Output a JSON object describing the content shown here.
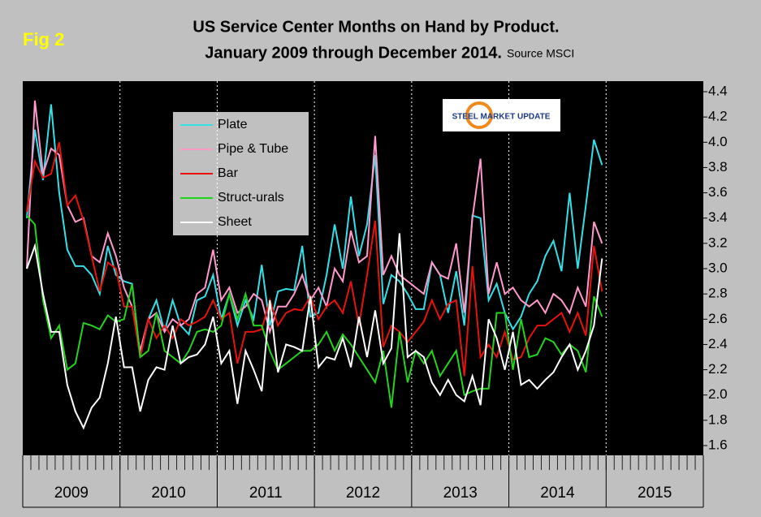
{
  "chart_data": {
    "type": "line",
    "title": "US Service Center Months on Hand by Product.",
    "subtitle": "January 2009 through December 2014.",
    "source": "Source MSCI",
    "figure_label": "Fig 2",
    "logo": "STEEL MARKET UPDATE",
    "categories": [
      null,
      null,
      null,
      null,
      null,
      null,
      null,
      null,
      null,
      null,
      null,
      null,
      null,
      null,
      null,
      null,
      null,
      null,
      null,
      null,
      null,
      null,
      null,
      null,
      null,
      null,
      null,
      null,
      null,
      null,
      null,
      null,
      null,
      null,
      null,
      null,
      null,
      null,
      null,
      null,
      null,
      null,
      null,
      null,
      null,
      null,
      null,
      null,
      null,
      null,
      null,
      null,
      null,
      null,
      null,
      null,
      null,
      null,
      null,
      null,
      null,
      null,
      null,
      null,
      null,
      null,
      null,
      null,
      null,
      null,
      null,
      null,
      null,
      null,
      null,
      null,
      null,
      null,
      null,
      null,
      null,
      null,
      null,
      null
    ],
    "year_labels": [
      "2009",
      "2010",
      "2011",
      "2012",
      "2013",
      "2014",
      "2015"
    ],
    "legend": "upper-left",
    "series": [
      {
        "name": "Plate",
        "color": "#33e0e8",
        "values": [
          3.4,
          4.1,
          3.7,
          4.3,
          3.6,
          3.15,
          3.02,
          3.02,
          2.95,
          2.8,
          3.18,
          2.95,
          2.9,
          2.88,
          2.3,
          2.6,
          2.75,
          2.5,
          2.75,
          2.55,
          2.48,
          2.75,
          2.78,
          2.95,
          2.6,
          2.8,
          2.55,
          2.75,
          2.6,
          3.03,
          2.55,
          2.82,
          2.84,
          2.83,
          3.18,
          2.62,
          2.65,
          2.95,
          3.35,
          3.0,
          3.57,
          3.1,
          3.35,
          3.9,
          2.72,
          2.95,
          2.9,
          2.8,
          2.68,
          2.68,
          3.05,
          2.95,
          2.65,
          2.98,
          2.55,
          3.42,
          3.4,
          2.75,
          2.88,
          2.65,
          2.52,
          2.62,
          2.8,
          2.9,
          3.1,
          3.22,
          2.98,
          3.6,
          3.0,
          3.5,
          4.02,
          3.82,
          null,
          null,
          null,
          null,
          null,
          null,
          null,
          null,
          null,
          null,
          null,
          null
        ]
      },
      {
        "name": "Pipe & Tube",
        "color": "#ff99cc",
        "values": [
          3.0,
          4.33,
          3.75,
          3.95,
          3.9,
          3.5,
          3.37,
          3.4,
          3.1,
          3.05,
          3.28,
          3.1,
          2.85,
          2.7,
          2.35,
          2.6,
          2.65,
          2.5,
          2.6,
          2.55,
          2.6,
          2.8,
          2.85,
          3.15,
          2.75,
          2.85,
          2.65,
          2.7,
          2.8,
          2.75,
          2.5,
          2.7,
          2.7,
          2.8,
          2.95,
          2.75,
          2.85,
          2.7,
          3.0,
          2.9,
          3.3,
          3.05,
          3.1,
          4.05,
          2.95,
          3.1,
          2.95,
          2.9,
          2.85,
          2.8,
          3.05,
          2.95,
          2.92,
          3.2,
          2.65,
          3.4,
          3.87,
          2.8,
          3.05,
          2.8,
          2.85,
          2.75,
          2.7,
          2.75,
          2.65,
          2.8,
          2.75,
          2.65,
          2.85,
          2.7,
          3.37,
          3.2,
          null,
          null,
          null,
          null,
          null,
          null,
          null,
          null,
          null,
          null,
          null,
          null
        ]
      },
      {
        "name": "Bar",
        "color": "#e8120c",
        "values": [
          3.45,
          3.85,
          3.72,
          3.75,
          4.0,
          3.5,
          3.58,
          3.38,
          3.1,
          2.82,
          3.05,
          3.0,
          2.7,
          2.7,
          2.3,
          2.6,
          2.45,
          2.55,
          2.45,
          2.6,
          2.55,
          2.58,
          2.62,
          2.75,
          2.6,
          2.65,
          2.25,
          2.5,
          2.5,
          2.52,
          2.75,
          2.55,
          2.65,
          2.68,
          2.67,
          2.78,
          2.6,
          2.7,
          2.75,
          2.65,
          2.9,
          2.55,
          2.95,
          3.38,
          2.38,
          2.55,
          2.5,
          2.42,
          2.5,
          2.58,
          2.75,
          2.6,
          2.72,
          2.75,
          2.15,
          3.02,
          2.3,
          2.4,
          2.3,
          2.5,
          2.28,
          2.3,
          2.45,
          2.55,
          2.55,
          2.6,
          2.65,
          2.5,
          2.65,
          2.47,
          3.18,
          2.82,
          null,
          null,
          null,
          null,
          null,
          null,
          null,
          null,
          null,
          null,
          null,
          null
        ]
      },
      {
        "name": "Struct-urals",
        "color": "#22d41c",
        "values": [
          3.42,
          3.35,
          2.75,
          2.45,
          2.55,
          2.2,
          2.25,
          2.57,
          2.55,
          2.52,
          2.63,
          2.58,
          2.6,
          2.88,
          2.3,
          2.35,
          2.65,
          2.35,
          2.3,
          2.25,
          2.35,
          2.5,
          2.52,
          2.5,
          2.55,
          2.8,
          2.6,
          2.8,
          2.55,
          2.55,
          2.35,
          2.2,
          2.25,
          2.3,
          2.35,
          2.35,
          2.4,
          2.5,
          2.35,
          2.48,
          2.4,
          2.3,
          2.2,
          2.1,
          2.35,
          1.9,
          2.5,
          2.1,
          2.35,
          2.25,
          2.35,
          2.15,
          2.25,
          2.35,
          2.0,
          2.03,
          2.05,
          2.05,
          2.65,
          2.65,
          2.2,
          2.6,
          2.3,
          2.32,
          2.45,
          2.42,
          2.32,
          2.4,
          2.35,
          2.18,
          2.78,
          2.62,
          null,
          null,
          null,
          null,
          null,
          null,
          null,
          null,
          null,
          null,
          null,
          null
        ]
      },
      {
        "name": "Sheet",
        "color": "#ffffff",
        "values": [
          3.0,
          3.18,
          2.8,
          2.5,
          2.5,
          2.08,
          1.87,
          1.74,
          1.9,
          1.98,
          2.25,
          2.62,
          2.22,
          2.22,
          1.87,
          2.12,
          2.22,
          2.2,
          2.55,
          2.25,
          2.3,
          2.32,
          2.4,
          2.62,
          2.25,
          2.35,
          1.93,
          2.35,
          2.2,
          2.03,
          2.75,
          2.18,
          2.4,
          2.38,
          2.35,
          2.78,
          2.22,
          2.3,
          2.28,
          2.45,
          2.22,
          2.62,
          2.3,
          2.67,
          2.25,
          2.37,
          3.28,
          2.3,
          2.35,
          2.3,
          2.1,
          2.0,
          2.12,
          2.0,
          1.95,
          2.15,
          1.92,
          2.6,
          2.45,
          2.2,
          2.5,
          2.08,
          2.12,
          2.05,
          2.12,
          2.18,
          2.3,
          2.4,
          2.2,
          2.35,
          2.55,
          3.08,
          null,
          null,
          null,
          null,
          null,
          null,
          null,
          null,
          null,
          null,
          null,
          null
        ]
      }
    ],
    "ylim": [
      1.6,
      4.4
    ],
    "yticks": [
      1.6,
      1.8,
      {
        "value": 2,
        "label": "2.0"
      },
      2.2,
      2.4,
      2.6,
      2.8,
      {
        "value": 3,
        "label": "3.0"
      },
      3.2,
      3.4,
      3.6,
      3.8,
      {
        "value": 4,
        "label": "4.0"
      },
      4.2,
      4.4
    ]
  }
}
